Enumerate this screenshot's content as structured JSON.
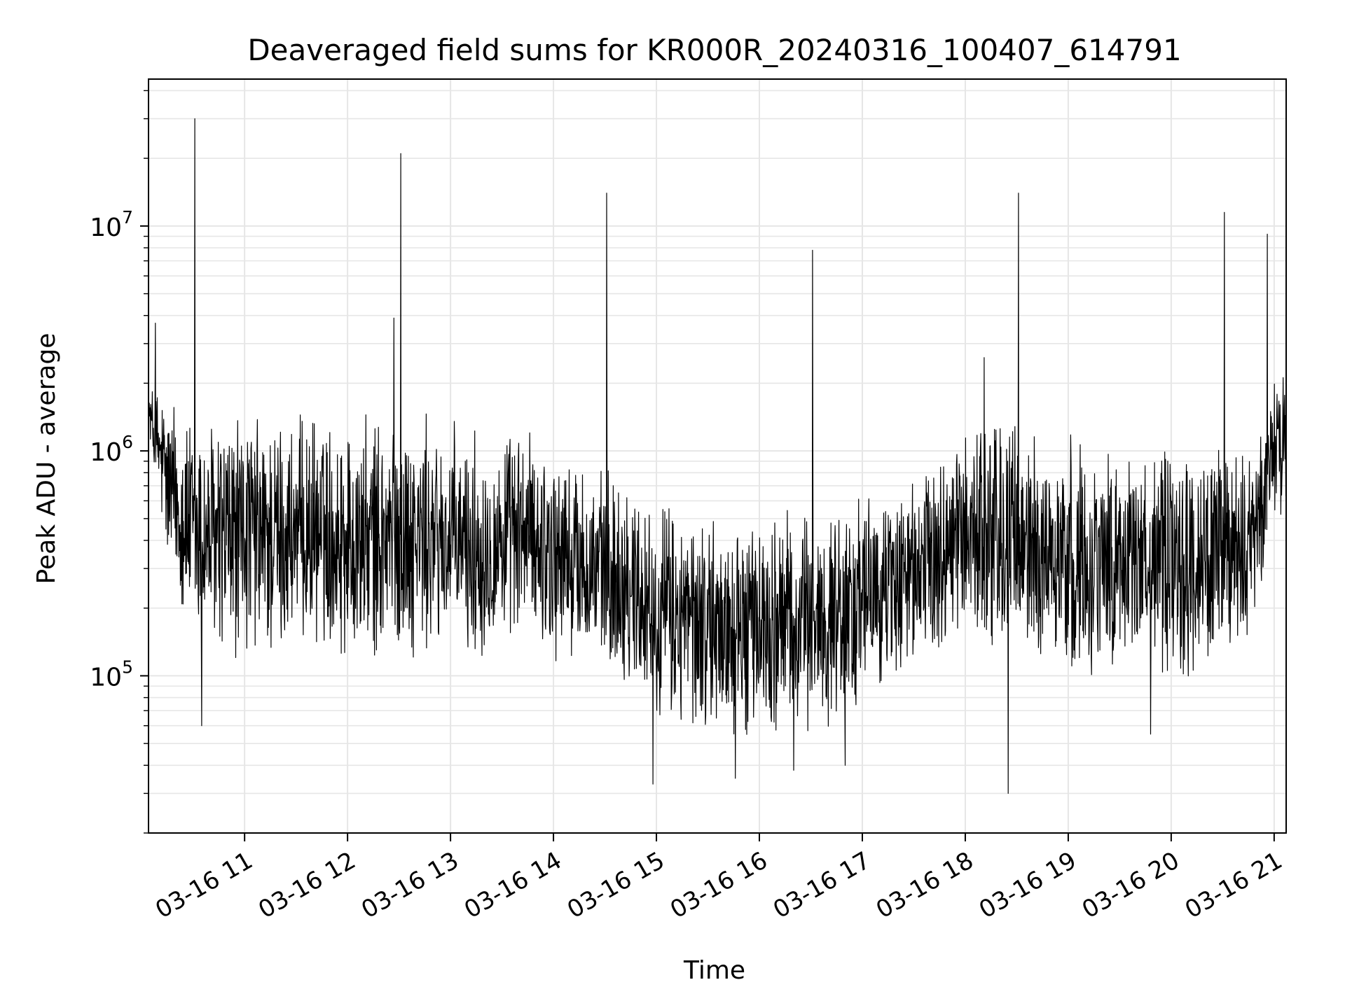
{
  "chart_data": {
    "type": "line",
    "title": "Deaveraged field sums for KR000R_20240316_100407_614791",
    "xlabel": "Time",
    "ylabel": "Peak ADU - average",
    "xscale": "time",
    "yscale": "log",
    "xlim": [
      "2024-03-16 10:04",
      "2024-03-16 21:07"
    ],
    "ylim": [
      20000,
      45000000
    ],
    "grid": true,
    "legend": "none",
    "line_color": "#000000",
    "x_tick_labels": [
      "03-16 11",
      "03-16 12",
      "03-16 13",
      "03-16 14",
      "03-16 15",
      "03-16 16",
      "03-16 17",
      "03-16 18",
      "03-16 19",
      "03-16 20",
      "03-16 21"
    ],
    "y_tick_labels": [
      {
        "base": "10",
        "exp": "5"
      },
      {
        "base": "10",
        "exp": "6"
      },
      {
        "base": "10",
        "exp": "7"
      }
    ],
    "series": [
      {
        "x": [
          "2024-03-16 10:04",
          "2024-03-16 10:15",
          "2024-03-16 10:30",
          "2024-03-16 10:45",
          "2024-03-16 11:00",
          "2024-03-16 11:15",
          "2024-03-16 11:30",
          "2024-03-16 11:45",
          "2024-03-16 12:00",
          "2024-03-16 12:15",
          "2024-03-16 12:30",
          "2024-03-16 12:45",
          "2024-03-16 13:00",
          "2024-03-16 13:15",
          "2024-03-16 13:30",
          "2024-03-16 13:45",
          "2024-03-16 14:00",
          "2024-03-16 14:15",
          "2024-03-16 14:30",
          "2024-03-16 14:45",
          "2024-03-16 15:00",
          "2024-03-16 15:15",
          "2024-03-16 15:30",
          "2024-03-16 15:45",
          "2024-03-16 16:00",
          "2024-03-16 16:15",
          "2024-03-16 16:30",
          "2024-03-16 16:45",
          "2024-03-16 17:00",
          "2024-03-16 17:15",
          "2024-03-16 17:30",
          "2024-03-16 17:45",
          "2024-03-16 18:00",
          "2024-03-16 18:15",
          "2024-03-16 18:30",
          "2024-03-16 18:45",
          "2024-03-16 19:00",
          "2024-03-16 19:15",
          "2024-03-16 19:30",
          "2024-03-16 19:45",
          "2024-03-16 20:00",
          "2024-03-16 20:15",
          "2024-03-16 20:30",
          "2024-03-16 20:45",
          "2024-03-16 21:00",
          "2024-03-16 21:07"
        ],
        "low": [
          1100000,
          250000,
          120000,
          100000,
          110000,
          100000,
          120000,
          130000,
          110000,
          100000,
          110000,
          110000,
          110000,
          100000,
          120000,
          150000,
          100000,
          100000,
          90000,
          80000,
          60000,
          50000,
          50000,
          50000,
          50000,
          50000,
          50000,
          55000,
          70000,
          90000,
          100000,
          120000,
          150000,
          100000,
          100000,
          90000,
          90000,
          100000,
          100000,
          100000,
          90000,
          90000,
          100000,
          120000,
          500000,
          500000
        ],
        "high": [
          2000000,
          2000000,
          1500000,
          1600000,
          1600000,
          1600000,
          1500000,
          1500000,
          1500000,
          1500000,
          1500000,
          1500000,
          1400000,
          1300000,
          1300000,
          1300000,
          1200000,
          1000000,
          900000,
          800000,
          700000,
          600000,
          550000,
          500000,
          550000,
          600000,
          600000,
          600000,
          650000,
          700000,
          800000,
          1000000,
          1400000,
          1700000,
          1500000,
          1300000,
          1200000,
          1100000,
          1100000,
          1100000,
          1100000,
          1100000,
          1100000,
          1000000,
          2200000,
          2500000
        ],
        "outliers_high": [
          {
            "x": "2024-03-16 10:31",
            "y": 30000000
          },
          {
            "x": "2024-03-16 12:31",
            "y": 21000000
          },
          {
            "x": "2024-03-16 14:31",
            "y": 14000000
          },
          {
            "x": "2024-03-16 16:31",
            "y": 7800000
          },
          {
            "x": "2024-03-16 18:31",
            "y": 14000000
          },
          {
            "x": "2024-03-16 20:31",
            "y": 11500000
          },
          {
            "x": "2024-03-16 20:56",
            "y": 9200000
          },
          {
            "x": "2024-03-16 12:27",
            "y": 3900000
          },
          {
            "x": "2024-03-16 18:11",
            "y": 2600000
          },
          {
            "x": "2024-03-16 10:08",
            "y": 3700000
          }
        ],
        "outliers_low": [
          {
            "x": "2024-03-16 14:58",
            "y": 33000
          },
          {
            "x": "2024-03-16 15:46",
            "y": 35000
          },
          {
            "x": "2024-03-16 16:20",
            "y": 38000
          },
          {
            "x": "2024-03-16 18:25",
            "y": 30000
          },
          {
            "x": "2024-03-16 10:35",
            "y": 60000
          },
          {
            "x": "2024-03-16 19:48",
            "y": 55000
          },
          {
            "x": "2024-03-16 16:50",
            "y": 40000
          }
        ]
      }
    ]
  }
}
